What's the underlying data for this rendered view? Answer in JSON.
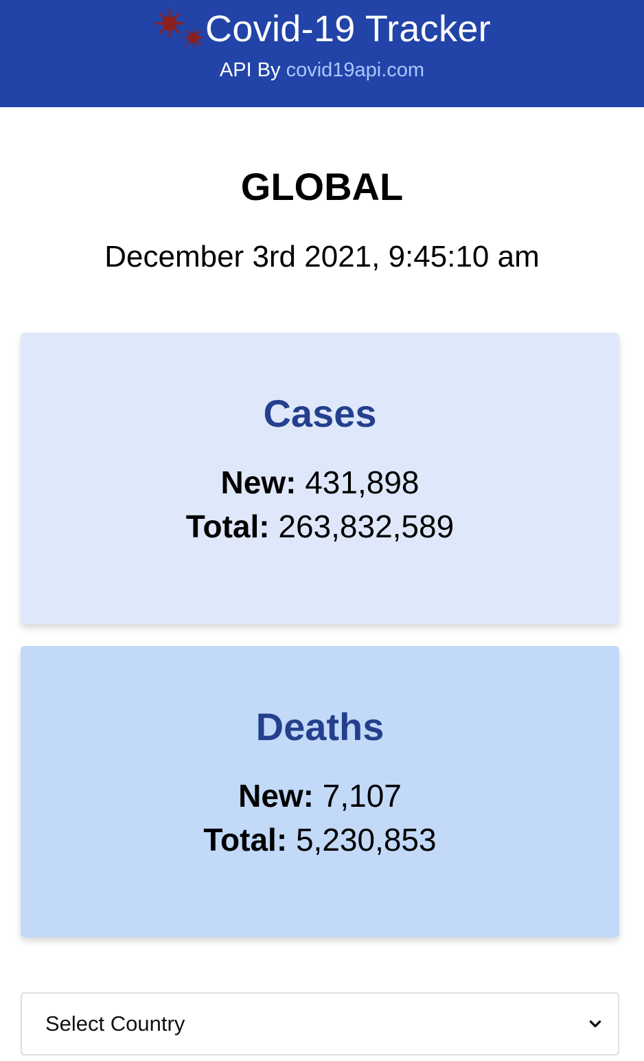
{
  "header": {
    "title": "Covid-19 Tracker",
    "api_prefix": "API By ",
    "api_link_text": "covid19api.com",
    "logo_icon": "virus-icon"
  },
  "summary": {
    "region": "GLOBAL",
    "updated": "December 3rd 2021, 9:45:10 am"
  },
  "cards": {
    "cases": {
      "title": "Cases",
      "new_label": "New:",
      "new_value": "431,898",
      "total_label": "Total:",
      "total_value": "263,832,589"
    },
    "deaths": {
      "title": "Deaths",
      "new_label": "New:",
      "new_value": "7,107",
      "total_label": "Total:",
      "total_value": "5,230,853"
    }
  },
  "country_select": {
    "selected": "Select Country"
  },
  "colors": {
    "header_bg": "#2244a8",
    "link": "#a8c8ff",
    "cases_bg": "#dfe8fa",
    "deaths_bg": "#c2d9f8",
    "card_title": "#24408d",
    "virus": "#8b2020"
  }
}
